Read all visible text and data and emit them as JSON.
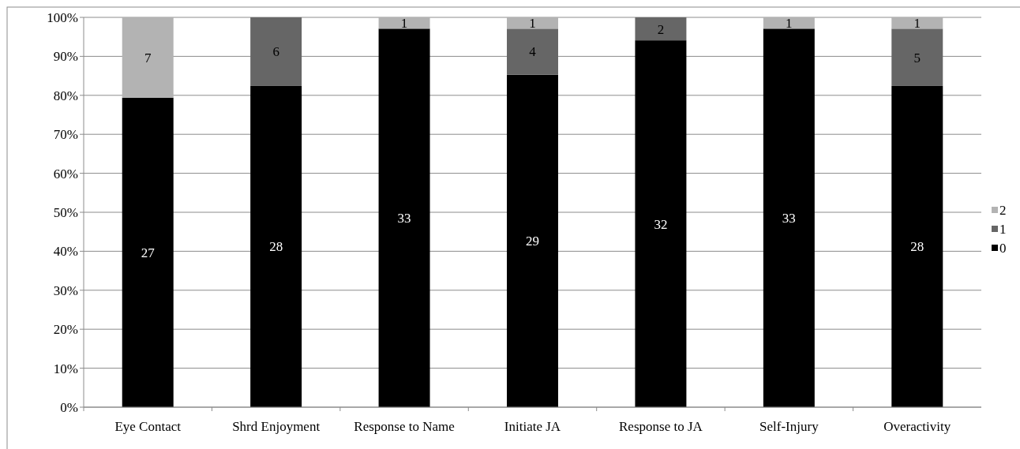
{
  "chart_data": {
    "type": "bar",
    "stacked": true,
    "categories": [
      "Eye Contact",
      "Shrd Enjoyment",
      "Response to Name",
      "Initiate JA",
      "Response to JA",
      "Self-Injury",
      "Overactivity"
    ],
    "series": [
      {
        "name": "0",
        "color": "#000000",
        "values": [
          79.4,
          82.4,
          97.1,
          85.3,
          94.1,
          97.1,
          82.4
        ]
      },
      {
        "name": "1",
        "color": "#666666",
        "values": [
          0,
          17.6,
          0,
          11.8,
          5.9,
          0,
          14.7
        ]
      },
      {
        "name": "2",
        "color": "#b3b3b3",
        "values": [
          20.6,
          0,
          2.9,
          2.9,
          0,
          2.9,
          2.9
        ]
      }
    ],
    "annotations": [
      "27",
      "7",
      "28",
      "6",
      "33",
      "1",
      "29",
      "4",
      "1",
      "32",
      "2",
      "33",
      "1",
      "28",
      "5",
      "1"
    ],
    "ylim": [
      0,
      100
    ],
    "yticks": [
      {
        "value": 0,
        "label": "0%"
      },
      {
        "value": 10,
        "label": "10%"
      },
      {
        "value": 20,
        "label": "20%"
      },
      {
        "value": 30,
        "label": "30%"
      },
      {
        "value": 40,
        "label": "40%"
      },
      {
        "value": 50,
        "label": "50%"
      },
      {
        "value": 60,
        "label": "60%"
      },
      {
        "value": 70,
        "label": "70%"
      },
      {
        "value": 80,
        "label": "80%"
      },
      {
        "value": 90,
        "label": "90%"
      },
      {
        "value": 100,
        "label": "100%"
      }
    ],
    "grid": "y",
    "legend": "right"
  }
}
